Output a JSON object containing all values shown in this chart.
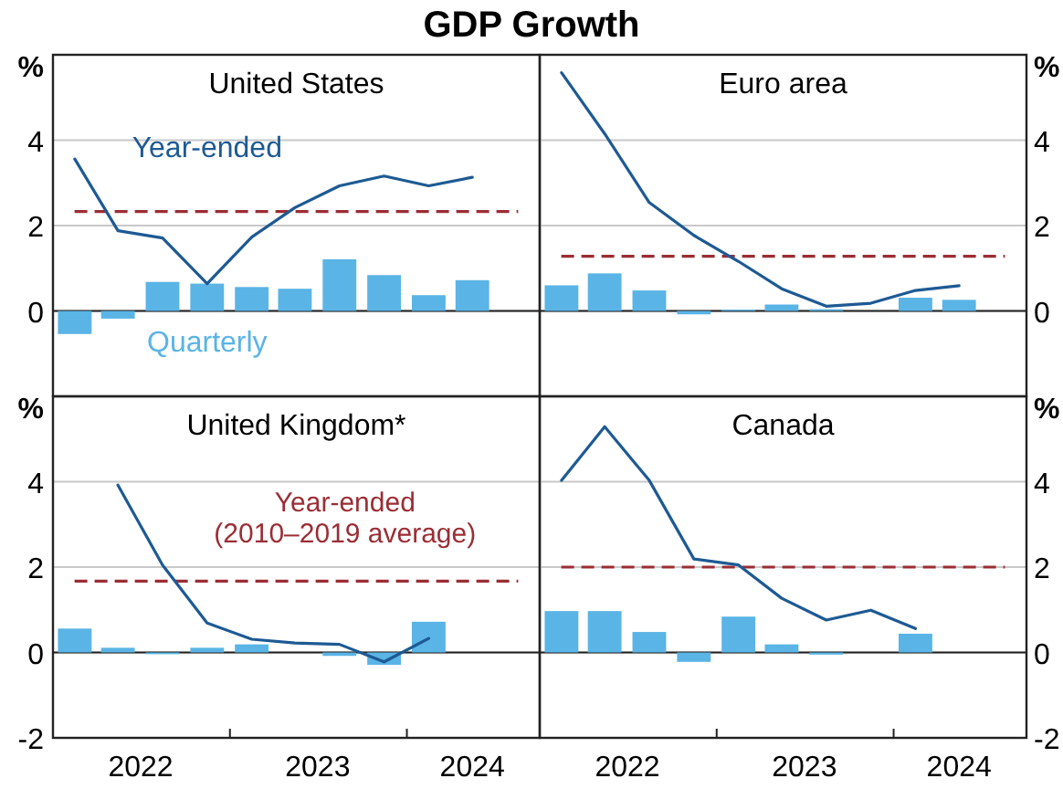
{
  "chart_data": [
    {
      "type": "bar",
      "title": "United States",
      "annotations": [
        "GDP Growth"
      ],
      "x": [
        "2022-02-15",
        "2022-05-15",
        "2022-08-15",
        "2022-11-15",
        "2023-02-15",
        "2023-05-15",
        "2023-08-15",
        "2023-11-15",
        "2024-02-15",
        "2024-05-15"
      ],
      "xlim": [
        "2022-01-01",
        "2024-10-01"
      ],
      "ylim": [
        -2,
        6
      ],
      "yticks": [
        0,
        2,
        4
      ],
      "ylabel": "%",
      "grid": "y",
      "tick_labels": "y",
      "series": [
        {
          "name": "Quarterly",
          "color": "#5ab4e5",
          "values": [
            -0.54,
            -0.18,
            0.68,
            0.64,
            0.56,
            0.52,
            1.21,
            0.84,
            0.37,
            0.72
          ]
        },
        {
          "name": "Year-ended",
          "type": "line",
          "color": "#1d5a94",
          "values": [
            3.56,
            1.88,
            1.71,
            0.64,
            1.73,
            2.42,
            2.93,
            3.16,
            2.93,
            3.13
          ]
        }
      ],
      "ref_lines": [
        {
          "axis": "y",
          "value": 2.33,
          "color": "#9b2d35",
          "line_style": "dashed"
        }
      ]
    },
    {
      "type": "bar",
      "title": "Euro area",
      "x": [
        "2022-02-15",
        "2022-05-15",
        "2022-08-15",
        "2022-11-15",
        "2023-02-15",
        "2023-05-15",
        "2023-08-15",
        "2023-11-15",
        "2024-02-15",
        "2024-05-15"
      ],
      "xlim": [
        "2022-01-01",
        "2024-10-01"
      ],
      "ylim": [
        -2,
        6
      ],
      "yticks": [
        0,
        2,
        4
      ],
      "ylabel": "%",
      "grid": "y",
      "tick_labels": "y",
      "series": [
        {
          "color": "#5ab4e5",
          "values": [
            0.6,
            0.88,
            0.48,
            -0.08,
            0.03,
            0.15,
            0.04,
            0,
            0.31,
            0.26
          ]
        },
        {
          "type": "line",
          "color": "#1d5a94",
          "values": [
            5.58,
            4.15,
            2.54,
            1.77,
            1.16,
            0.52,
            0.11,
            0.18,
            0.48,
            0.59
          ]
        }
      ],
      "ref_lines": [
        {
          "axis": "y",
          "value": 1.28,
          "color": "#9b2d35",
          "line_style": "dashed"
        }
      ]
    },
    {
      "type": "bar",
      "title": "United Kingdom*",
      "x": [
        "2022-02-15",
        "2022-05-15",
        "2022-08-15",
        "2022-11-15",
        "2023-02-15",
        "2023-05-15",
        "2023-08-15",
        "2023-11-15",
        "2024-02-15"
      ],
      "xlim": [
        "2022-01-01",
        "2024-10-01"
      ],
      "xticks": [
        {
          "value": "2022-07-01",
          "label": "2022"
        },
        {
          "value": "2023-01-01",
          "label": null
        },
        {
          "value": "2023-07-01",
          "label": "2023"
        },
        {
          "value": "2024-01-01",
          "label": null
        },
        {
          "value": "2024-05-15",
          "label": "2024"
        }
      ],
      "ylim": [
        -2,
        6
      ],
      "yticks": [
        -2,
        0,
        2,
        4
      ],
      "ylabel": "%",
      "grid": "y",
      "series": [
        {
          "color": "#5ab4e5",
          "values": [
            0.56,
            0.11,
            -0.04,
            0.11,
            0.19,
            0,
            -0.08,
            -0.29,
            0.72
          ]
        },
        {
          "type": "line",
          "color": "#1d5a94",
          "values": [
            null,
            3.92,
            2.05,
            0.69,
            0.31,
            0.22,
            0.19,
            -0.22,
            0.33
          ]
        }
      ],
      "ref_lines": [
        {
          "axis": "y",
          "value": 1.67,
          "color": "#9b2d35",
          "line_style": "dashed",
          "label": "Year-ended (2010–2019 average)"
        }
      ]
    },
    {
      "type": "bar",
      "title": "Canada",
      "x": [
        "2022-02-15",
        "2022-05-15",
        "2022-08-15",
        "2022-11-15",
        "2023-02-15",
        "2023-05-15",
        "2023-08-15",
        "2023-11-15",
        "2024-02-15"
      ],
      "xlim": [
        "2022-01-01",
        "2024-10-01"
      ],
      "xticks": [
        {
          "value": "2022-07-01",
          "label": "2022"
        },
        {
          "value": "2023-01-01",
          "label": null
        },
        {
          "value": "2023-07-01",
          "label": "2023"
        },
        {
          "value": "2024-01-01",
          "label": null
        },
        {
          "value": "2024-05-15",
          "label": "2024"
        }
      ],
      "ylim": [
        -2,
        6
      ],
      "yticks": [
        -2,
        0,
        2,
        4
      ],
      "ylabel": "%",
      "grid": "y",
      "series": [
        {
          "color": "#5ab4e5",
          "values": [
            0.97,
            0.97,
            0.48,
            -0.22,
            0.84,
            0.19,
            -0.05,
            0,
            0.44
          ]
        },
        {
          "type": "line",
          "color": "#1d5a94",
          "values": [
            4.03,
            5.29,
            4.03,
            2.19,
            2.05,
            1.27,
            0.76,
            0.99,
            0.56
          ]
        }
      ],
      "ref_lines": [
        {
          "axis": "y",
          "value": 2.0,
          "color": "#9b2d35",
          "line_style": "dashed"
        }
      ]
    }
  ]
}
